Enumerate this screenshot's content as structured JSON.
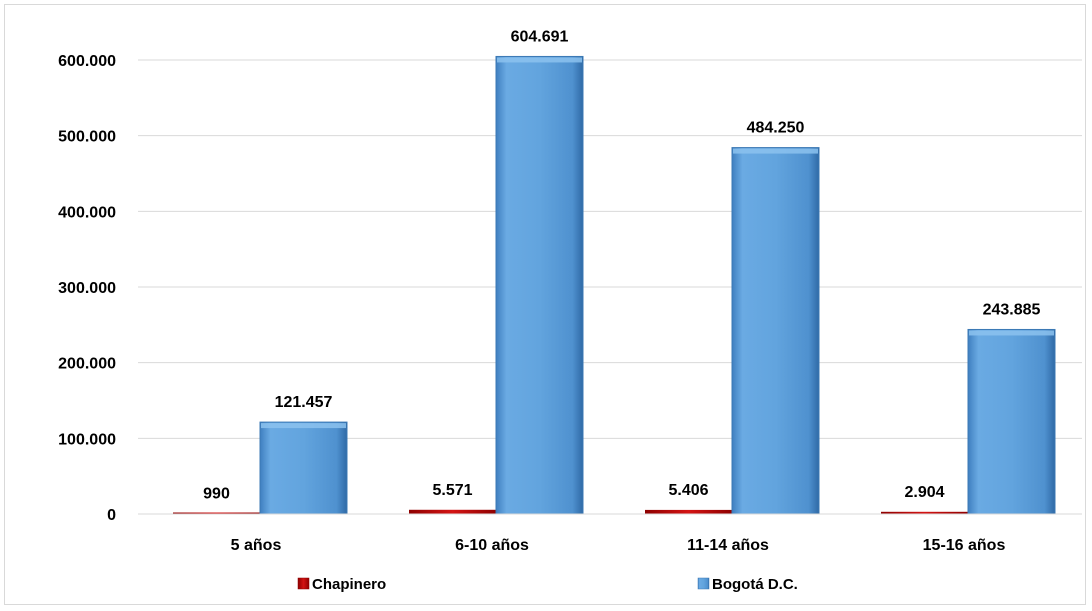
{
  "chart_data": {
    "type": "bar",
    "categories": [
      "5 años",
      "6-10 años",
      "11-14 años",
      "15-16 años"
    ],
    "series": [
      {
        "name": "Chapinero",
        "values": [
          990,
          5571,
          5406,
          2904
        ],
        "labels": [
          "990",
          "5.571",
          "5.406",
          "2.904"
        ],
        "color": "#c00000"
      },
      {
        "name": "Bogotá D.C.",
        "values": [
          121457,
          604691,
          484250,
          243885
        ],
        "labels": [
          "121.457",
          "604.691",
          "484.250",
          "243.885"
        ],
        "color": "#5b9bd5"
      }
    ],
    "ylim": [
      0,
      600000
    ],
    "yticks": [
      {
        "value": 0,
        "label": "0"
      },
      {
        "value": 100000,
        "label": "100.000"
      },
      {
        "value": 200000,
        "label": "200.000"
      },
      {
        "value": 300000,
        "label": "300.000"
      },
      {
        "value": 400000,
        "label": "400.000"
      },
      {
        "value": 500000,
        "label": "500.000"
      },
      {
        "value": 600000,
        "label": "600.000"
      }
    ],
    "grid": true,
    "legend_position": "bottom"
  }
}
